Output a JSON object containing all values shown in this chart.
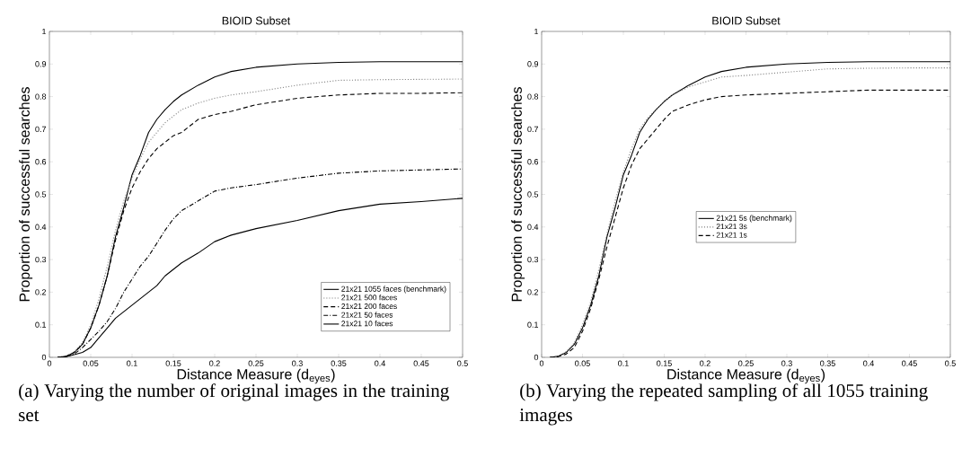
{
  "chart_data": [
    {
      "type": "line",
      "title": "BIOID Subset",
      "xlabel": "Distance Measure (d$_{eyes}$)",
      "ylabel": "Proportion of successful searches",
      "x": [
        0.01,
        0.02,
        0.03,
        0.04,
        0.05,
        0.06,
        0.07,
        0.08,
        0.09,
        0.1,
        0.11,
        0.12,
        0.13,
        0.14,
        0.15,
        0.16,
        0.18,
        0.2,
        0.22,
        0.25,
        0.3,
        0.35,
        0.4,
        0.45,
        0.5
      ],
      "series": [
        {
          "name": "21x21 1055 faces (benchmark)",
          "color": "#000000",
          "line_style": "solid",
          "values": [
            0,
            0.003,
            0.015,
            0.04,
            0.09,
            0.16,
            0.25,
            0.37,
            0.46,
            0.56,
            0.62,
            0.69,
            0.73,
            0.76,
            0.785,
            0.805,
            0.835,
            0.86,
            0.877,
            0.89,
            0.9,
            0.905,
            0.907,
            0.907,
            0.907
          ]
        },
        {
          "name": "21x21 500 faces",
          "color": "#808080",
          "line_style": "dotted",
          "values": [
            0,
            0.003,
            0.017,
            0.045,
            0.1,
            0.18,
            0.28,
            0.39,
            0.48,
            0.55,
            0.61,
            0.66,
            0.69,
            0.72,
            0.74,
            0.76,
            0.78,
            0.795,
            0.805,
            0.815,
            0.835,
            0.85,
            0.852,
            0.853,
            0.854
          ]
        },
        {
          "name": "21x21 200 faces",
          "color": "#000000",
          "line_style": "dashed",
          "values": [
            0,
            0.003,
            0.015,
            0.04,
            0.09,
            0.16,
            0.25,
            0.36,
            0.45,
            0.52,
            0.57,
            0.61,
            0.64,
            0.66,
            0.68,
            0.69,
            0.73,
            0.745,
            0.755,
            0.775,
            0.795,
            0.805,
            0.81,
            0.81,
            0.812
          ]
        },
        {
          "name": "21x21 50 faces",
          "color": "#000000",
          "line_style": "dashdot",
          "values": [
            0,
            0.002,
            0.01,
            0.03,
            0.055,
            0.08,
            0.11,
            0.15,
            0.2,
            0.24,
            0.28,
            0.31,
            0.35,
            0.39,
            0.425,
            0.45,
            0.48,
            0.51,
            0.52,
            0.53,
            0.55,
            0.565,
            0.572,
            0.575,
            0.578
          ]
        },
        {
          "name": "21x21 10 faces",
          "color": "#000000",
          "line_style": "solid",
          "values": [
            0,
            0.002,
            0.008,
            0.015,
            0.03,
            0.06,
            0.09,
            0.12,
            0.14,
            0.16,
            0.18,
            0.2,
            0.22,
            0.25,
            0.27,
            0.29,
            0.32,
            0.355,
            0.375,
            0.395,
            0.42,
            0.45,
            0.47,
            0.478,
            0.488
          ]
        }
      ],
      "xlim": [
        0,
        0.5
      ],
      "ylim": [
        0,
        1
      ],
      "xticks": [
        0,
        0.05,
        0.1,
        0.15,
        0.2,
        0.25,
        0.3,
        0.35,
        0.4,
        0.45,
        0.5
      ],
      "yticks": [
        0,
        0.1,
        0.2,
        0.3,
        0.4,
        0.5,
        0.6,
        0.7,
        0.8,
        0.9,
        1
      ],
      "legend": "bottom right",
      "grid": false,
      "annotations": [
        "(a) Varying the number of original images in the training set"
      ]
    },
    {
      "type": "line",
      "title": "BIOID Subset",
      "xlabel": "Distance Measure (d$_{eyes}$)",
      "ylabel": "Proportion of successful searches",
      "x": [
        0.01,
        0.02,
        0.03,
        0.04,
        0.05,
        0.06,
        0.07,
        0.08,
        0.09,
        0.1,
        0.11,
        0.12,
        0.13,
        0.14,
        0.15,
        0.16,
        0.18,
        0.2,
        0.22,
        0.25,
        0.3,
        0.35,
        0.4,
        0.45,
        0.5
      ],
      "series": [
        {
          "name": "21x21 5s (benchmark)",
          "color": "#000000",
          "line_style": "solid",
          "values": [
            0,
            0.003,
            0.015,
            0.04,
            0.09,
            0.16,
            0.25,
            0.37,
            0.46,
            0.56,
            0.62,
            0.69,
            0.73,
            0.76,
            0.785,
            0.805,
            0.835,
            0.86,
            0.877,
            0.89,
            0.9,
            0.905,
            0.907,
            0.907,
            0.907
          ]
        },
        {
          "name": "21x21 3s",
          "color": "#808080",
          "line_style": "dotted",
          "values": [
            0,
            0.003,
            0.017,
            0.045,
            0.1,
            0.17,
            0.27,
            0.38,
            0.48,
            0.57,
            0.64,
            0.7,
            0.735,
            0.76,
            0.785,
            0.805,
            0.83,
            0.845,
            0.86,
            0.865,
            0.875,
            0.885,
            0.887,
            0.888,
            0.888
          ]
        },
        {
          "name": "21x21 1s",
          "color": "#000000",
          "line_style": "dashed",
          "values": [
            0,
            0.002,
            0.01,
            0.03,
            0.08,
            0.15,
            0.24,
            0.34,
            0.43,
            0.52,
            0.59,
            0.64,
            0.67,
            0.7,
            0.73,
            0.755,
            0.775,
            0.79,
            0.8,
            0.805,
            0.81,
            0.815,
            0.82,
            0.82,
            0.82
          ]
        }
      ],
      "xlim": [
        0,
        0.5
      ],
      "ylim": [
        0,
        1
      ],
      "xticks": [
        0,
        0.05,
        0.1,
        0.15,
        0.2,
        0.25,
        0.3,
        0.35,
        0.4,
        0.45,
        0.5
      ],
      "yticks": [
        0,
        0.1,
        0.2,
        0.3,
        0.4,
        0.5,
        0.6,
        0.7,
        0.8,
        0.9,
        1
      ],
      "legend": "center",
      "grid": false,
      "annotations": [
        "(b) Varying the repeated sampling of all 1055 training images"
      ]
    }
  ]
}
